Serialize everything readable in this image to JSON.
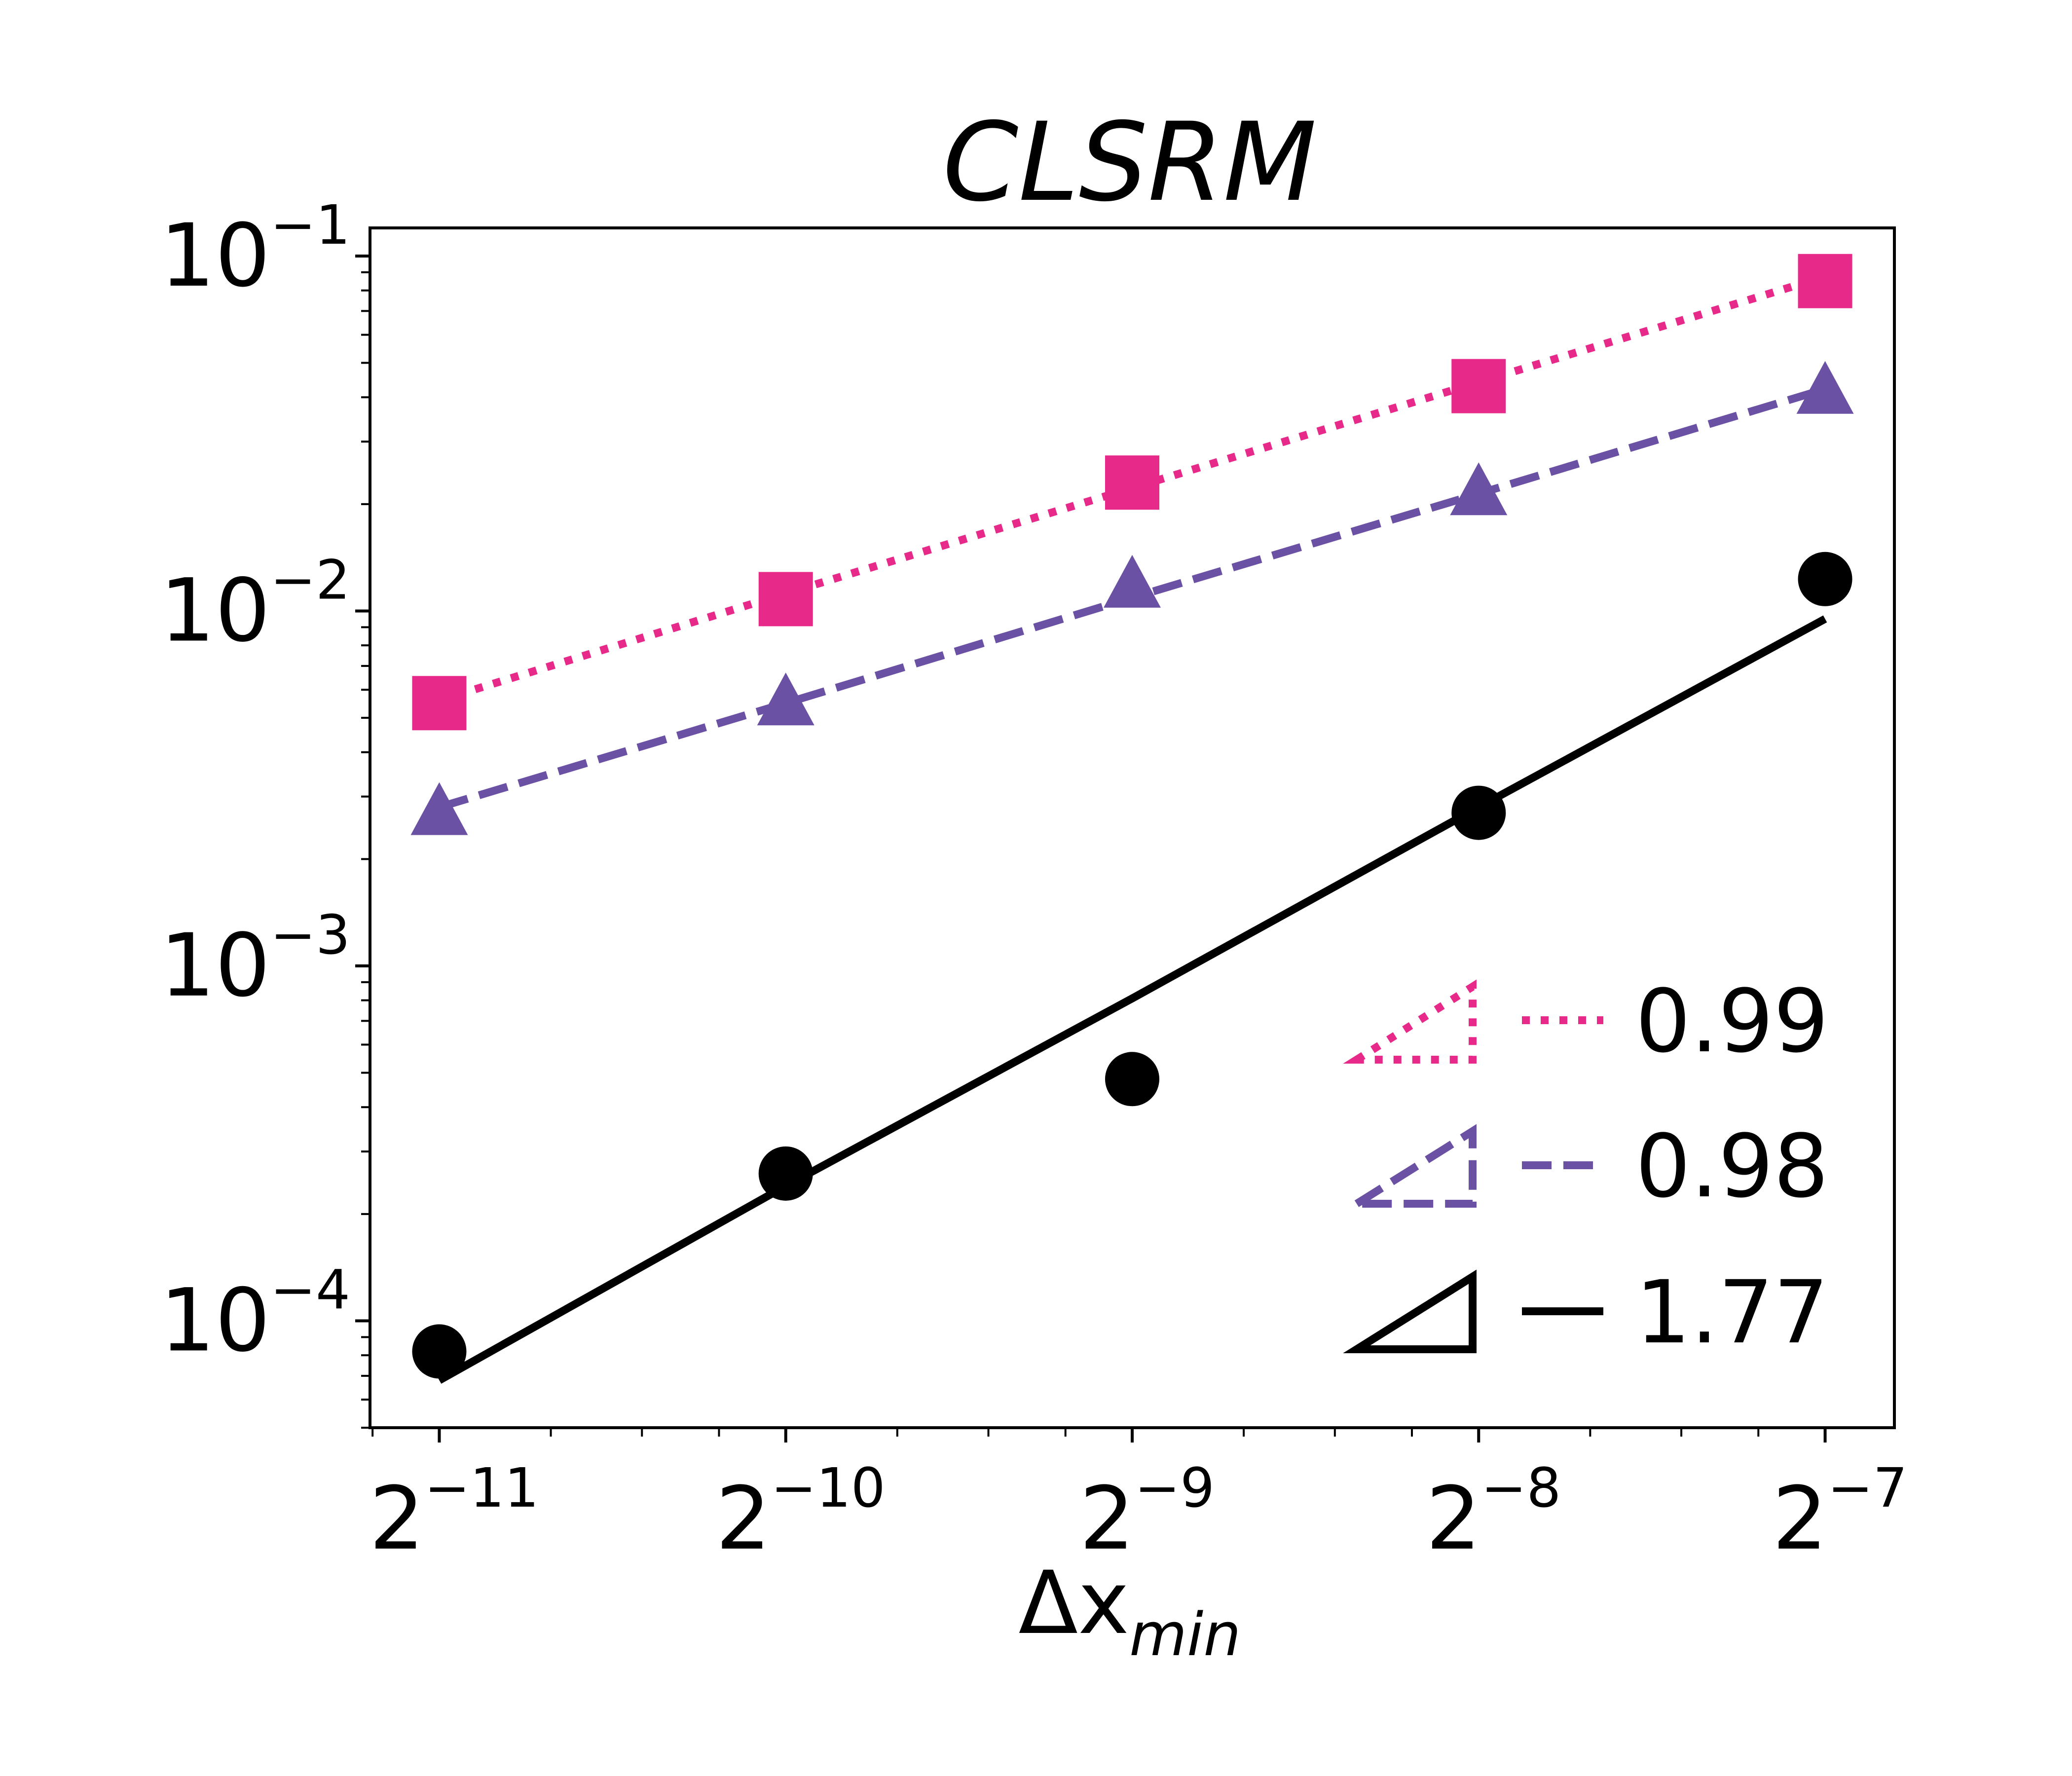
{
  "chart_data": {
    "type": "line",
    "title": "CLSRM",
    "xlabel": {
      "base": "Δx",
      "subscript": "min"
    },
    "ylabel": "",
    "xscale": "log2",
    "yscale": "log10",
    "xlim_exp": [
      -11.2,
      -6.8
    ],
    "ylim": [
      5e-05,
      0.12
    ],
    "x_exponents": [
      -11,
      -10,
      -9,
      -8,
      -7
    ],
    "x_ticks": [
      {
        "base": "2",
        "exp": "−11"
      },
      {
        "base": "2",
        "exp": "−10"
      },
      {
        "base": "2",
        "exp": "−9"
      },
      {
        "base": "2",
        "exp": "−8"
      },
      {
        "base": "2",
        "exp": "−7"
      }
    ],
    "y_ticks": [
      {
        "value": 0.1,
        "base": "10",
        "exp": "−1"
      },
      {
        "value": 0.01,
        "base": "10",
        "exp": "−2"
      },
      {
        "value": 0.001,
        "base": "10",
        "exp": "−3"
      },
      {
        "value": 0.0001,
        "base": "10",
        "exp": "−4"
      }
    ],
    "series": [
      {
        "name": "pink-squares",
        "color": "#e7298a",
        "marker": "square",
        "linestyle": "dotted",
        "values": [
          0.0055,
          0.0108,
          0.023,
          0.043,
          0.085
        ],
        "fit": [
          0.0056,
          0.0112,
          0.0222,
          0.0441,
          0.0875
        ],
        "rate": "0.99"
      },
      {
        "name": "purple-triangles",
        "color": "#6a51a3",
        "marker": "triangle",
        "linestyle": "dashed",
        "values": [
          0.0027,
          0.0055,
          0.0118,
          0.0215,
          0.0415
        ],
        "fit": [
          0.0028,
          0.0055,
          0.0109,
          0.0214,
          0.0422
        ],
        "rate": "0.98"
      },
      {
        "name": "black-circles",
        "color": "#000000",
        "marker": "circle",
        "linestyle": "solid",
        "values": [
          8.2e-05,
          0.00026,
          0.00048,
          0.0027,
          0.0123
        ],
        "fit": [
          6.8e-05,
          0.00024,
          0.00081,
          0.0028,
          0.0095
        ],
        "rate": "1.77"
      }
    ],
    "legend": {
      "placement": "lower-right",
      "entries": [
        {
          "label": "0.99",
          "series": "pink-squares"
        },
        {
          "label": "0.98",
          "series": "purple-triangles"
        },
        {
          "label": "1.77",
          "series": "black-circles"
        }
      ]
    },
    "grid": false
  }
}
